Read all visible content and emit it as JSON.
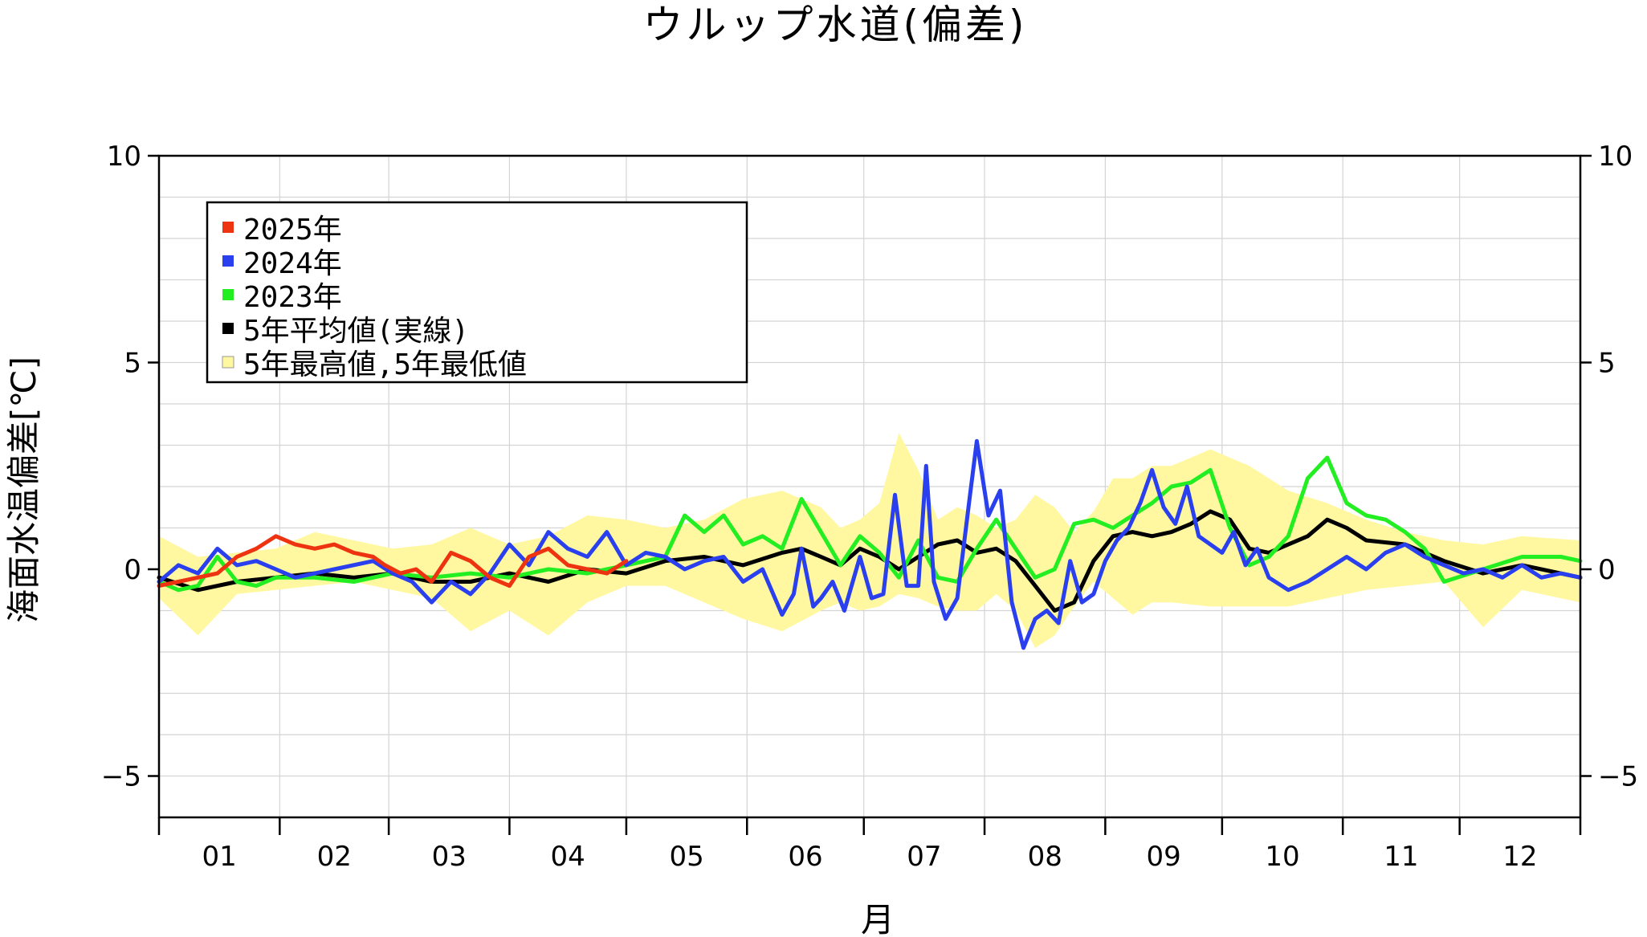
{
  "chart_data": {
    "type": "line",
    "title": "ウルップ水道(偏差)",
    "xlabel": "月",
    "ylabel": "海面水温偏差[℃]",
    "ylim": [
      -6,
      10
    ],
    "xlim": [
      0,
      365
    ],
    "y_ticks": [
      -5,
      0,
      5,
      10
    ],
    "y_tick_labels": [
      "−5",
      "0",
      "5",
      "10"
    ],
    "month_labels": [
      "01",
      "02",
      "03",
      "04",
      "05",
      "06",
      "07",
      "08",
      "09",
      "10",
      "11",
      "12"
    ],
    "grid": true,
    "legend_position": "top-left",
    "zero_band": {
      "color": "#b4b4b4",
      "min": -0.15,
      "max": 0.15
    },
    "envelope": {
      "name": "5年最高値,5年最低値",
      "color": "#fff8a0",
      "x": [
        0,
        10,
        20,
        30,
        40,
        50,
        60,
        70,
        80,
        90,
        100,
        110,
        120,
        130,
        140,
        150,
        160,
        170,
        175,
        180,
        185,
        190,
        195,
        200,
        205,
        210,
        215,
        220,
        225,
        230,
        235,
        240,
        245,
        250,
        255,
        260,
        270,
        280,
        290,
        300,
        310,
        320,
        330,
        340,
        350,
        365
      ],
      "upper": [
        0.8,
        0.3,
        0.4,
        0.5,
        0.9,
        0.7,
        0.5,
        0.6,
        1.0,
        0.6,
        0.8,
        1.3,
        1.2,
        1.0,
        1.2,
        1.7,
        1.9,
        1.5,
        1.0,
        1.2,
        1.6,
        3.3,
        2.4,
        1.2,
        1.5,
        1.3,
        1.0,
        1.2,
        1.8,
        1.5,
        0.9,
        1.4,
        2.2,
        2.2,
        2.5,
        2.5,
        2.9,
        2.5,
        1.9,
        1.6,
        1.2,
        0.9,
        0.7,
        0.6,
        0.8,
        0.7
      ],
      "lower": [
        -0.7,
        -1.6,
        -0.6,
        -0.5,
        -0.4,
        -0.3,
        -0.5,
        -0.7,
        -1.5,
        -1.0,
        -1.6,
        -0.8,
        -0.4,
        -0.4,
        -0.8,
        -1.2,
        -1.5,
        -1.0,
        -0.8,
        -1.0,
        -0.9,
        -0.6,
        -0.7,
        -0.9,
        -1.0,
        -1.0,
        -0.6,
        -1.0,
        -1.9,
        -1.6,
        -0.9,
        -0.3,
        -0.7,
        -1.1,
        -0.8,
        -0.8,
        -0.9,
        -0.9,
        -0.9,
        -0.7,
        -0.5,
        -0.4,
        -0.3,
        -1.4,
        -0.5,
        -0.8
      ]
    },
    "series": [
      {
        "name": "5年平均値(実線)",
        "color": "#000000",
        "x": [
          0,
          10,
          20,
          30,
          40,
          50,
          60,
          70,
          80,
          90,
          100,
          110,
          120,
          130,
          140,
          150,
          160,
          165,
          170,
          175,
          180,
          185,
          190,
          195,
          200,
          205,
          210,
          215,
          220,
          225,
          230,
          235,
          240,
          245,
          250,
          255,
          260,
          265,
          270,
          275,
          280,
          285,
          290,
          295,
          300,
          305,
          310,
          320,
          330,
          340,
          350,
          365
        ],
        "y": [
          -0.2,
          -0.5,
          -0.3,
          -0.2,
          -0.1,
          -0.2,
          -0.1,
          -0.3,
          -0.3,
          -0.1,
          -0.3,
          0.0,
          -0.1,
          0.2,
          0.3,
          0.1,
          0.4,
          0.5,
          0.3,
          0.1,
          0.5,
          0.3,
          0.0,
          0.3,
          0.6,
          0.7,
          0.4,
          0.5,
          0.2,
          -0.4,
          -1.0,
          -0.8,
          0.2,
          0.8,
          0.9,
          0.8,
          0.9,
          1.1,
          1.4,
          1.2,
          0.5,
          0.4,
          0.6,
          0.8,
          1.2,
          1.0,
          0.7,
          0.6,
          0.2,
          -0.1,
          0.1,
          -0.2
        ]
      },
      {
        "name": "2023年",
        "color": "#22ee22",
        "x": [
          0,
          5,
          10,
          15,
          20,
          25,
          30,
          40,
          50,
          60,
          70,
          80,
          90,
          100,
          110,
          120,
          130,
          135,
          140,
          145,
          150,
          155,
          160,
          165,
          170,
          175,
          180,
          185,
          190,
          195,
          200,
          205,
          210,
          215,
          220,
          225,
          230,
          235,
          240,
          245,
          250,
          255,
          260,
          265,
          270,
          275,
          280,
          285,
          290,
          295,
          300,
          305,
          310,
          315,
          320,
          325,
          330,
          340,
          350,
          360,
          365
        ],
        "y": [
          -0.3,
          -0.5,
          -0.4,
          0.3,
          -0.3,
          -0.4,
          -0.2,
          -0.2,
          -0.3,
          -0.1,
          -0.2,
          -0.1,
          -0.2,
          0.0,
          -0.1,
          0.1,
          0.3,
          1.3,
          0.9,
          1.3,
          0.6,
          0.8,
          0.5,
          1.7,
          0.9,
          0.1,
          0.8,
          0.4,
          -0.2,
          0.7,
          -0.2,
          -0.3,
          0.5,
          1.2,
          0.5,
          -0.2,
          0.0,
          1.1,
          1.2,
          1.0,
          1.3,
          1.6,
          2.0,
          2.1,
          2.4,
          1.0,
          0.1,
          0.3,
          0.8,
          2.2,
          2.7,
          1.6,
          1.3,
          1.2,
          0.9,
          0.5,
          -0.3,
          0.0,
          0.3,
          0.3,
          0.2
        ]
      },
      {
        "name": "2024年",
        "color": "#2a40ee",
        "x": [
          0,
          5,
          10,
          15,
          20,
          25,
          30,
          35,
          40,
          45,
          55,
          60,
          65,
          70,
          75,
          80,
          85,
          90,
          95,
          100,
          105,
          110,
          115,
          120,
          125,
          130,
          135,
          140,
          145,
          150,
          155,
          160,
          163,
          165,
          168,
          170,
          173,
          176,
          180,
          183,
          186,
          189,
          192,
          195,
          197,
          199,
          202,
          205,
          208,
          210,
          213,
          216,
          219,
          222,
          225,
          228,
          231,
          234,
          237,
          240,
          243,
          246,
          249,
          252,
          255,
          258,
          261,
          264,
          267,
          270,
          273,
          276,
          279,
          282,
          285,
          290,
          295,
          300,
          305,
          310,
          315,
          320,
          325,
          330,
          335,
          340,
          345,
          350,
          355,
          360,
          365
        ],
        "y": [
          -0.3,
          0.1,
          -0.1,
          0.5,
          0.1,
          0.2,
          0.0,
          -0.2,
          -0.1,
          0.0,
          0.2,
          -0.1,
          -0.3,
          -0.8,
          -0.3,
          -0.6,
          -0.1,
          0.6,
          0.1,
          0.9,
          0.5,
          0.3,
          0.9,
          0.1,
          0.4,
          0.3,
          0.0,
          0.2,
          0.3,
          -0.3,
          0.0,
          -1.1,
          -0.6,
          0.5,
          -0.9,
          -0.7,
          -0.3,
          -1.0,
          0.3,
          -0.7,
          -0.6,
          1.8,
          -0.4,
          -0.4,
          2.5,
          -0.3,
          -1.2,
          -0.7,
          1.6,
          3.1,
          1.3,
          1.9,
          -0.8,
          -1.9,
          -1.2,
          -1.0,
          -1.3,
          0.2,
          -0.8,
          -0.6,
          0.2,
          0.7,
          1.0,
          1.6,
          2.4,
          1.5,
          1.1,
          2.0,
          0.8,
          0.6,
          0.4,
          0.9,
          0.1,
          0.5,
          -0.2,
          -0.5,
          -0.3,
          0.0,
          0.3,
          0.0,
          0.4,
          0.6,
          0.3,
          0.1,
          -0.1,
          0.0,
          -0.2,
          0.1,
          -0.2,
          -0.1,
          -0.2
        ]
      },
      {
        "name": "2025年",
        "color": "#ee3311",
        "x": [
          0,
          5,
          10,
          15,
          20,
          25,
          30,
          35,
          40,
          45,
          50,
          55,
          58,
          62,
          66,
          70,
          75,
          80,
          85,
          90,
          95,
          100,
          105,
          110,
          115,
          120
        ],
        "y": [
          -0.4,
          -0.3,
          -0.2,
          -0.1,
          0.3,
          0.5,
          0.8,
          0.6,
          0.5,
          0.6,
          0.4,
          0.3,
          0.1,
          -0.1,
          0.0,
          -0.3,
          0.4,
          0.2,
          -0.2,
          -0.4,
          0.3,
          0.5,
          0.1,
          0.0,
          -0.1,
          0.2
        ]
      }
    ],
    "legend": [
      {
        "label": "2025年",
        "color": "#ee3311"
      },
      {
        "label": "2024年",
        "color": "#2a40ee"
      },
      {
        "label": "2023年",
        "color": "#22ee22"
      },
      {
        "label": "5年平均値(実線)",
        "color": "#000000"
      },
      {
        "label": "5年最高値,5年最低値",
        "color": "#fff8a0"
      }
    ]
  }
}
